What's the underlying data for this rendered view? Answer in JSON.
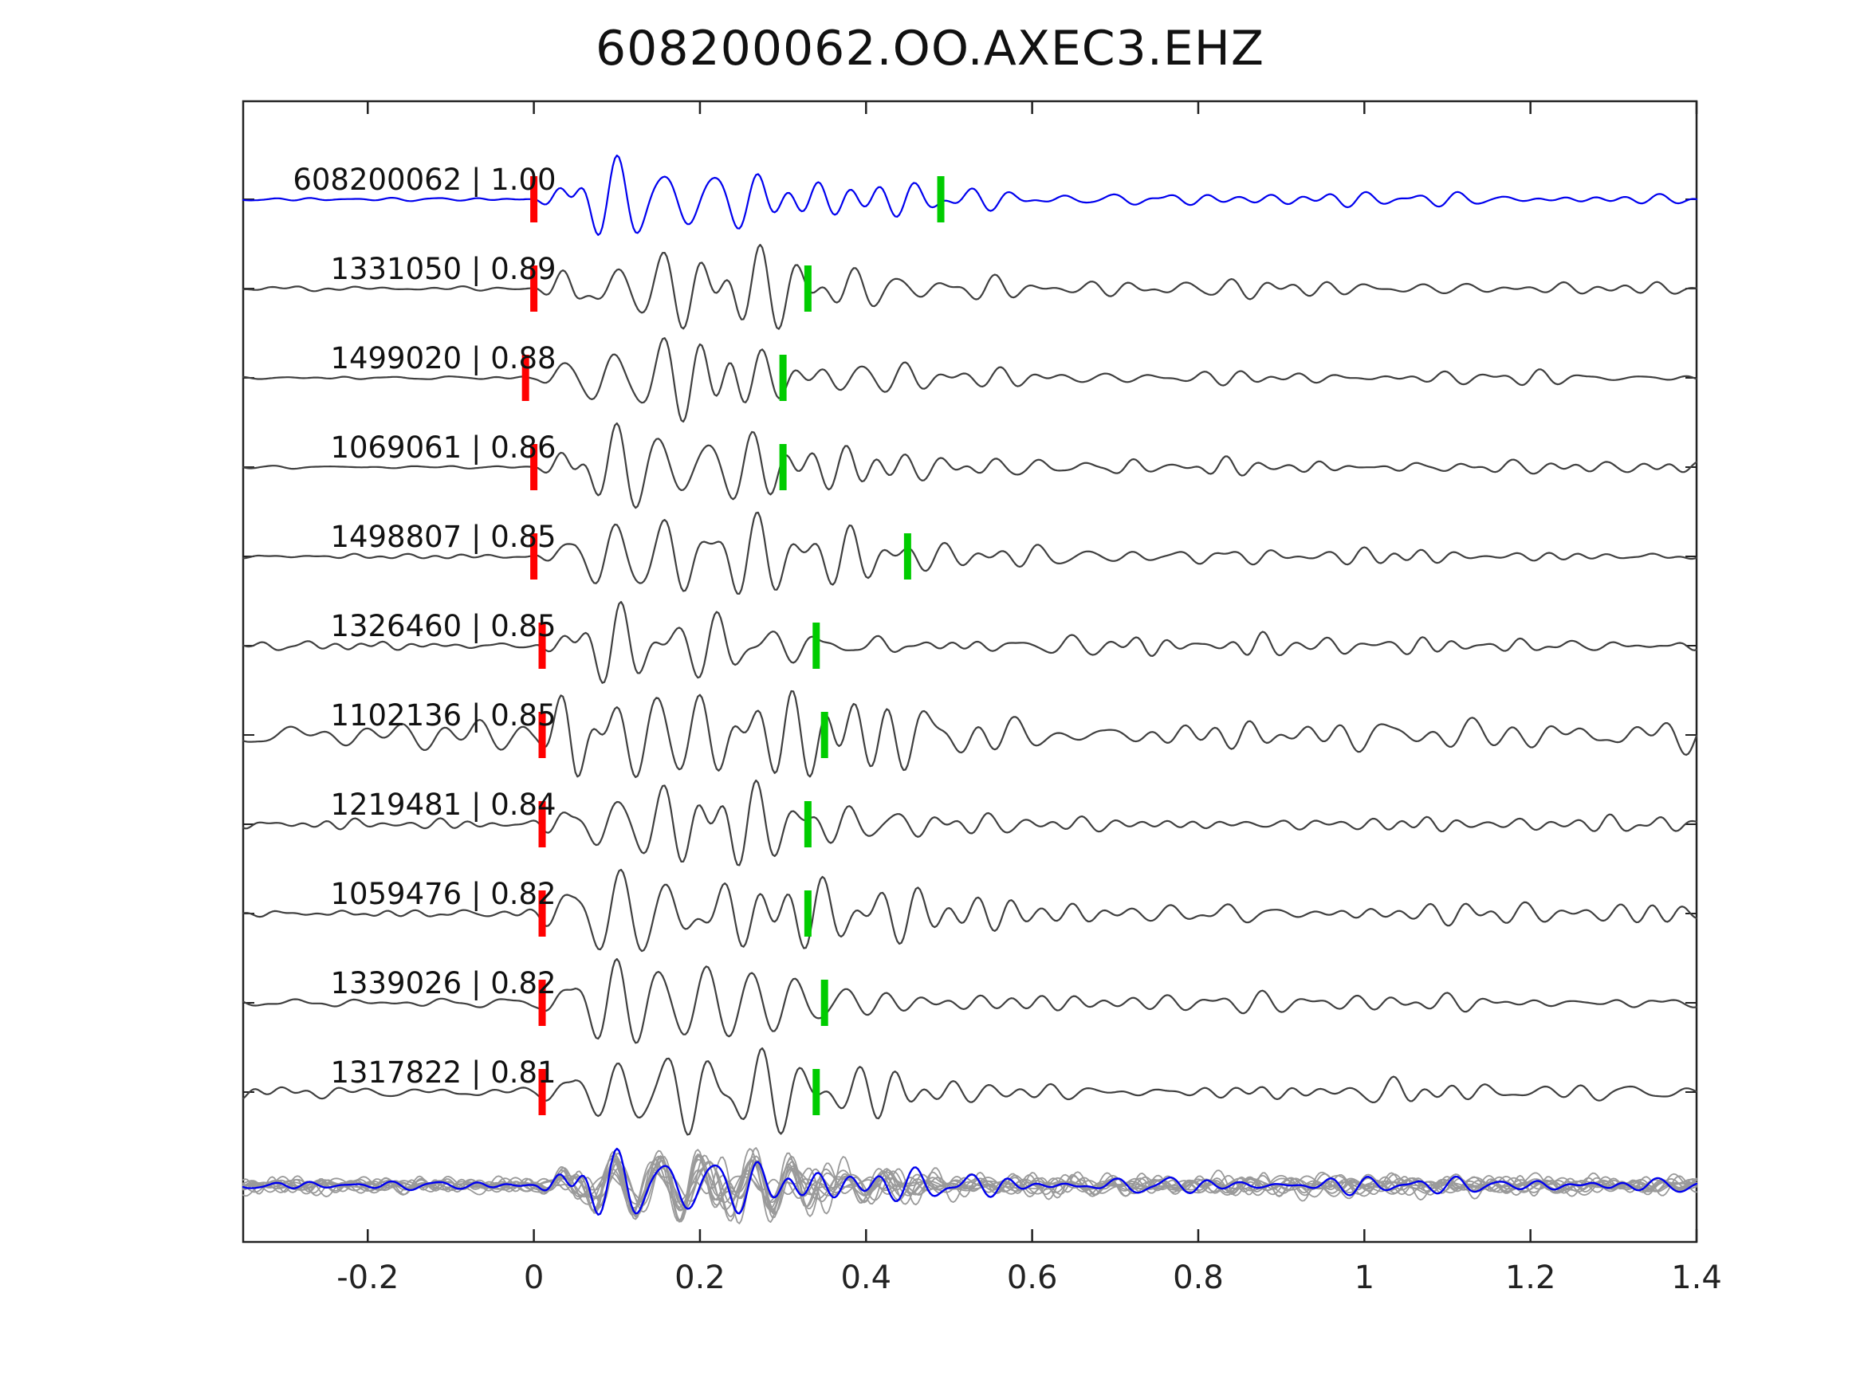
{
  "chart_data": {
    "type": "line",
    "title": "608200062.OO.AXEC3.EHZ",
    "xlabel": "",
    "ylabel": "",
    "xlim": [
      -0.35,
      1.4
    ],
    "x_ticks": [
      {
        "value": -0.2,
        "label": "-0.2"
      },
      {
        "value": 0.0,
        "label": "0"
      },
      {
        "value": 0.2,
        "label": "0.2"
      },
      {
        "value": 0.4,
        "label": "0.4"
      },
      {
        "value": 0.6,
        "label": "0.6"
      },
      {
        "value": 0.8,
        "label": "0.8"
      },
      {
        "value": 1.0,
        "label": "1"
      },
      {
        "value": 1.2,
        "label": "1.2"
      },
      {
        "value": 1.4,
        "label": "1.4"
      }
    ],
    "grid": false,
    "legend": "none",
    "pick_colors": {
      "red_pick": "#ff0000",
      "green_pick": "#00cc00"
    },
    "trace_colors": {
      "template": "#0000ee",
      "detection": "#3f3f3f",
      "stack_member": "#9a9a9a"
    },
    "traces": [
      {
        "label": "608200062 | 1.00",
        "event_id": "608200062",
        "correlation": 1.0,
        "color": "#0000ee",
        "red_pick": 0.0,
        "green_pick": 0.49,
        "noise_level": 0.04,
        "seed": 11
      },
      {
        "label": "1331050 | 0.89",
        "event_id": "1331050",
        "correlation": 0.89,
        "color": "#3f3f3f",
        "red_pick": 0.0,
        "green_pick": 0.33,
        "noise_level": 0.05,
        "seed": 22
      },
      {
        "label": "1499020 | 0.88",
        "event_id": "1499020",
        "correlation": 0.88,
        "color": "#3f3f3f",
        "red_pick": -0.01,
        "green_pick": 0.3,
        "noise_level": 0.03,
        "seed": 33
      },
      {
        "label": "1069061 | 0.86",
        "event_id": "1069061",
        "correlation": 0.86,
        "color": "#3f3f3f",
        "red_pick": 0.0,
        "green_pick": 0.3,
        "noise_level": 0.035,
        "seed": 44
      },
      {
        "label": "1498807 | 0.85",
        "event_id": "1498807",
        "correlation": 0.85,
        "color": "#3f3f3f",
        "red_pick": 0.0,
        "green_pick": 0.45,
        "noise_level": 0.05,
        "seed": 55
      },
      {
        "label": "1326460 | 0.85",
        "event_id": "1326460",
        "correlation": 0.85,
        "color": "#3f3f3f",
        "red_pick": 0.01,
        "green_pick": 0.34,
        "noise_level": 0.14,
        "seed": 66
      },
      {
        "label": "1102136 | 0.85",
        "event_id": "1102136",
        "correlation": 0.85,
        "color": "#3f3f3f",
        "red_pick": 0.01,
        "green_pick": 0.35,
        "noise_level": 0.17,
        "seed": 77
      },
      {
        "label": "1219481 | 0.84",
        "event_id": "1219481",
        "correlation": 0.84,
        "color": "#3f3f3f",
        "red_pick": 0.01,
        "green_pick": 0.33,
        "noise_level": 0.08,
        "seed": 88
      },
      {
        "label": "1059476 | 0.82",
        "event_id": "1059476",
        "correlation": 0.82,
        "color": "#3f3f3f",
        "red_pick": 0.01,
        "green_pick": 0.33,
        "noise_level": 0.05,
        "seed": 99
      },
      {
        "label": "1339026 | 0.82",
        "event_id": "1339026",
        "correlation": 0.82,
        "color": "#3f3f3f",
        "red_pick": 0.01,
        "green_pick": 0.35,
        "noise_level": 0.07,
        "seed": 110
      },
      {
        "label": "1317822 | 0.81",
        "event_id": "1317822",
        "correlation": 0.81,
        "color": "#3f3f3f",
        "red_pick": 0.01,
        "green_pick": 0.34,
        "noise_level": 0.08,
        "seed": 121
      }
    ],
    "stack": {
      "n_members": 12,
      "member_color": "#9a9a9a",
      "template_color": "#0000ee",
      "member_noise_level": 0.18,
      "template_noise_level": 0.12
    }
  }
}
